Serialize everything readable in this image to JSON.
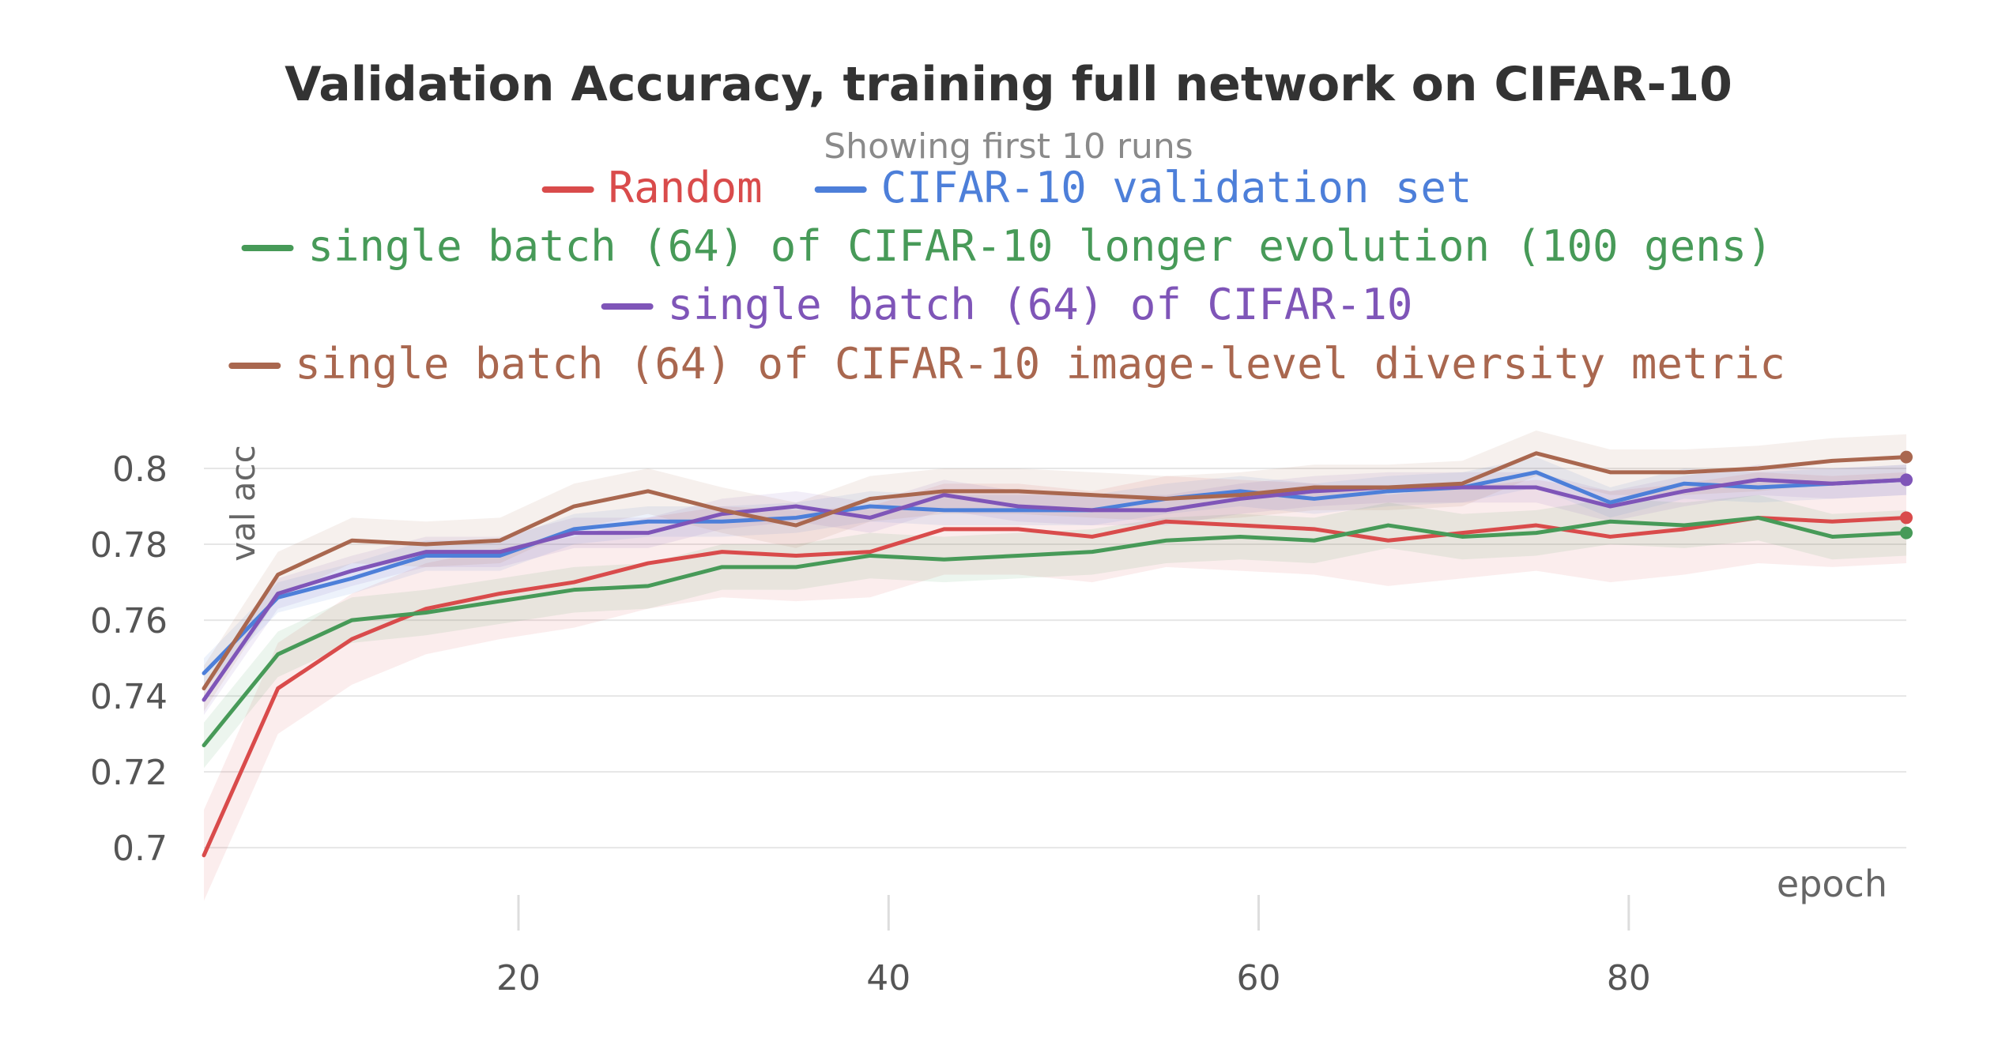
{
  "chart_data": {
    "type": "line",
    "title": "Validation Accuracy, training full network on CIFAR-10",
    "subtitle": "Showing first 10 runs",
    "xlabel": "epoch",
    "ylabel": "val acc",
    "xlim": [
      3,
      95
    ],
    "ylim": [
      0.684,
      0.81
    ],
    "x_ticks": [
      20,
      40,
      60,
      80
    ],
    "y_ticks": [
      0.7,
      0.72,
      0.74,
      0.76,
      0.78,
      0.8
    ],
    "y_tick_labels": [
      "0.7",
      "0.72",
      "0.74",
      "0.76",
      "0.78",
      "0.8"
    ],
    "grid": true,
    "legend_position": "top",
    "x": [
      3,
      7,
      11,
      15,
      19,
      23,
      27,
      31,
      35,
      39,
      43,
      47,
      51,
      55,
      59,
      63,
      67,
      71,
      75,
      79,
      83,
      87,
      91,
      95
    ],
    "series": [
      {
        "name": "Random",
        "color": "#d94b4b",
        "band": 0.012,
        "values": [
          0.698,
          0.742,
          0.755,
          0.763,
          0.767,
          0.77,
          0.775,
          0.778,
          0.777,
          0.778,
          0.784,
          0.784,
          0.782,
          0.786,
          0.785,
          0.784,
          0.781,
          0.783,
          0.785,
          0.782,
          0.784,
          0.787,
          0.786,
          0.787
        ]
      },
      {
        "name": "CIFAR-10 validation set",
        "color": "#4d7fd9",
        "band": 0.004,
        "values": [
          0.746,
          0.766,
          0.771,
          0.777,
          0.777,
          0.784,
          0.786,
          0.786,
          0.787,
          0.79,
          0.789,
          0.789,
          0.789,
          0.792,
          0.794,
          0.792,
          0.794,
          0.795,
          0.799,
          0.791,
          0.796,
          0.795,
          0.796,
          0.797
        ]
      },
      {
        "name": "single batch (64) of CIFAR-10 longer evolution (100 gens)",
        "color": "#479a58",
        "band": 0.006,
        "values": [
          0.727,
          0.751,
          0.76,
          0.762,
          0.765,
          0.768,
          0.769,
          0.774,
          0.774,
          0.777,
          0.776,
          0.777,
          0.778,
          0.781,
          0.782,
          0.781,
          0.785,
          0.782,
          0.783,
          0.786,
          0.785,
          0.787,
          0.782,
          0.783
        ]
      },
      {
        "name": "single batch (64) of CIFAR-10",
        "color": "#7f55b8",
        "band": 0.004,
        "values": [
          0.739,
          0.767,
          0.773,
          0.778,
          0.778,
          0.783,
          0.783,
          0.788,
          0.79,
          0.787,
          0.793,
          0.79,
          0.789,
          0.789,
          0.792,
          0.794,
          0.795,
          0.795,
          0.795,
          0.79,
          0.794,
          0.797,
          0.796,
          0.797
        ]
      },
      {
        "name": "single batch (64) of CIFAR-10 image-level diversity metric",
        "color": "#a9674f",
        "band": 0.006,
        "values": [
          0.742,
          0.772,
          0.781,
          0.78,
          0.781,
          0.79,
          0.794,
          0.789,
          0.785,
          0.792,
          0.794,
          0.794,
          0.793,
          0.792,
          0.793,
          0.795,
          0.795,
          0.796,
          0.804,
          0.799,
          0.799,
          0.8,
          0.802,
          0.803
        ]
      }
    ]
  }
}
